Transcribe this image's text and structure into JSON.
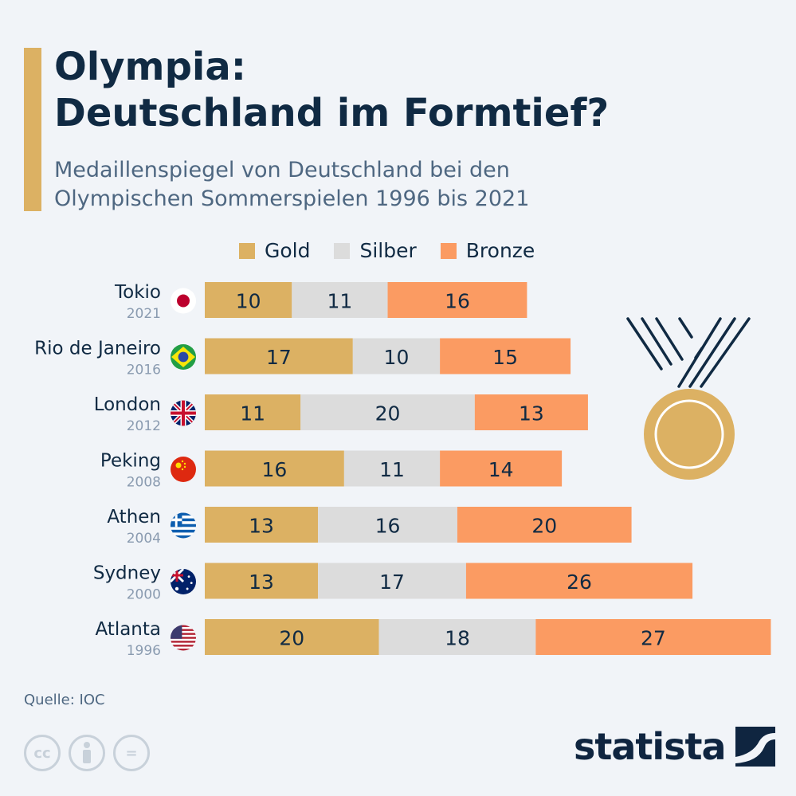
{
  "header": {
    "title_line1": "Olympia:",
    "title_line2": "Deutschland im Formtief?",
    "subtitle_line1": "Medaillenspiegel von Deutschland bei den",
    "subtitle_line2": "Olympischen Sommerspielen 1996 bis 2021"
  },
  "colors": {
    "gold": "#dcb163",
    "silber": "#dcdcdc",
    "bronze": "#fb9b62",
    "accent": "#dcb163",
    "text": "#102a43"
  },
  "icons": [
    "medal-icon",
    "flag-japan-icon",
    "flag-brazil-icon",
    "flag-uk-icon",
    "flag-china-icon",
    "flag-greece-icon",
    "flag-australia-icon",
    "flag-usa-icon",
    "cc-icon",
    "by-icon",
    "nd-icon",
    "statista-logo-icon"
  ],
  "chart_data": {
    "type": "bar",
    "orientation": "horizontal",
    "stacked": true,
    "legend_position": "top",
    "grid": false,
    "categories": [
      "Tokio",
      "Rio de Janeiro",
      "London",
      "Peking",
      "Athen",
      "Sydney",
      "Atlanta"
    ],
    "years": [
      "2021",
      "2016",
      "2012",
      "2008",
      "2004",
      "2000",
      "1996"
    ],
    "flags": [
      "japan",
      "brazil",
      "uk",
      "china",
      "greece",
      "australia",
      "usa"
    ],
    "series": [
      {
        "name": "Gold",
        "values": [
          10,
          17,
          11,
          16,
          13,
          13,
          20
        ]
      },
      {
        "name": "Silber",
        "values": [
          11,
          10,
          20,
          11,
          16,
          17,
          18
        ]
      },
      {
        "name": "Bronze",
        "values": [
          16,
          15,
          13,
          14,
          20,
          26,
          27
        ]
      }
    ]
  },
  "footer": {
    "source": "Quelle: IOC",
    "cc1": "cc",
    "cc3": "=",
    "logo": "statista"
  }
}
